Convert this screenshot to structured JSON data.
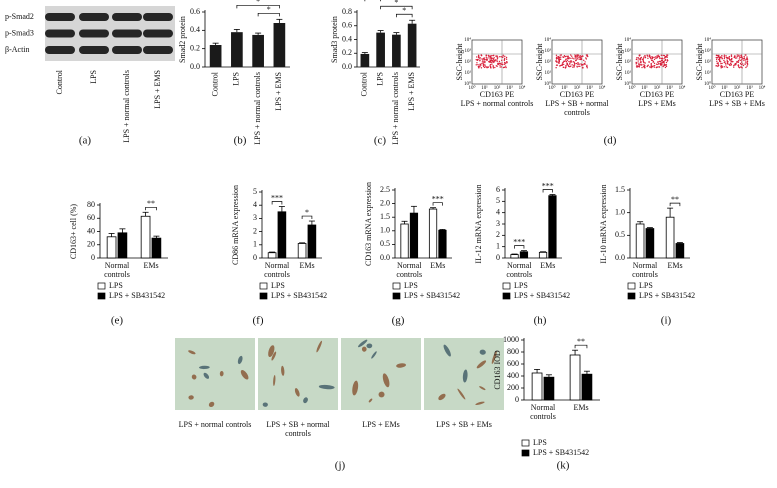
{
  "blot": {
    "rows": [
      "p-Smad2",
      "p-Smad3",
      "β-Actin"
    ],
    "lanes": [
      "Control",
      "LPS",
      "LPS + normal controls",
      "LPS + EMS"
    ],
    "panel": "(a)"
  },
  "flow": {
    "y_label": "SSC-height",
    "x_label": "CD163 PE",
    "axis_ticks": [
      "10⁰",
      "10¹",
      "10²",
      "10³",
      "10⁴"
    ],
    "captions": [
      "LPS + normal controls",
      "LPS + SB + normal controls",
      "LPS + EMs",
      "LPS + SB + EMs"
    ],
    "panel": "(d)"
  },
  "micrographs": {
    "captions": [
      "LPS + normal controls",
      "LPS + SB + normal controls",
      "LPS + EMs",
      "LPS + SB + EMs"
    ],
    "panel": "(j)"
  },
  "chart_data": [
    {
      "type": "bar",
      "panel": "(b)",
      "y_label": "Smad2 protein",
      "categories": [
        "Control",
        "LPS",
        "LPS + normal controls",
        "LPS + EMS"
      ],
      "values": [
        0.24,
        0.38,
        0.35,
        0.48
      ],
      "errors": [
        0.02,
        0.03,
        0.02,
        0.04
      ],
      "color": "#1a1a1a",
      "ylim": [
        0,
        0.6
      ],
      "yticks": [
        {
          "value": 0,
          "label": "0.0"
        },
        0.2,
        0.4,
        0.6
      ],
      "annotations": [
        {
          "text": "*",
          "from": 1,
          "to": 3
        },
        {
          "text": "*",
          "from": 2,
          "to": 3
        }
      ]
    },
    {
      "type": "bar",
      "panel": "(c)",
      "y_label": "Smad3 protein",
      "categories": [
        "Control",
        "LPS",
        "LPS + normal controls",
        "LPS + EMS"
      ],
      "values": [
        0.19,
        0.5,
        0.47,
        0.63
      ],
      "errors": [
        0.02,
        0.03,
        0.03,
        0.05
      ],
      "color": "#1a1a1a",
      "ylim": [
        0,
        0.8
      ],
      "yticks": [
        {
          "value": 0,
          "label": "0.0"
        },
        0.2,
        0.4,
        0.6,
        0.8
      ],
      "annotations": [
        {
          "text": "**",
          "from": 0,
          "to": 1
        },
        {
          "text": "*",
          "from": 1,
          "to": 3
        },
        {
          "text": "*",
          "from": 2,
          "to": 3
        }
      ]
    },
    {
      "type": "grouped_bar",
      "panel": "(e)",
      "y_label": "CD163+ cell (%)",
      "categories": [
        "Normal controls",
        "EMs"
      ],
      "series": [
        {
          "name": "LPS",
          "color": "#ffffff",
          "values": [
            32,
            63
          ],
          "errors": [
            5,
            6
          ]
        },
        {
          "name": "LPS + SB431542",
          "color": "#000000",
          "values": [
            38,
            30
          ],
          "errors": [
            6,
            3
          ]
        }
      ],
      "ylim": [
        0,
        80
      ],
      "yticks": [
        0,
        20,
        40,
        60,
        80
      ],
      "annotations": [
        {
          "text": "**",
          "category": 1
        }
      ]
    },
    {
      "type": "grouped_bar",
      "panel": "(f)",
      "y_label": "CD86 mRNA expression",
      "categories": [
        "Normal controls",
        "EMs"
      ],
      "series": [
        {
          "name": "LPS",
          "color": "#ffffff",
          "values": [
            0.4,
            1.1
          ],
          "errors": [
            0.05,
            0.05
          ]
        },
        {
          "name": "LPS + SB431542",
          "color": "#000000",
          "values": [
            3.5,
            2.5
          ],
          "errors": [
            0.4,
            0.3
          ]
        }
      ],
      "ylim": [
        0,
        5
      ],
      "yticks": [
        0,
        1,
        2,
        3,
        4,
        5
      ],
      "annotations": [
        {
          "text": "***",
          "category": 0
        },
        {
          "text": "*",
          "category": 1
        }
      ]
    },
    {
      "type": "grouped_bar",
      "panel": "(g)",
      "y_label": "CD163 mRNA expression",
      "categories": [
        "Normal controls",
        "EMs"
      ],
      "series": [
        {
          "name": "LPS",
          "color": "#ffffff",
          "values": [
            1.25,
            1.8
          ],
          "errors": [
            0.1,
            0.05
          ]
        },
        {
          "name": "LPS + SB431542",
          "color": "#000000",
          "values": [
            1.65,
            1.02
          ],
          "errors": [
            0.25,
            0.03
          ]
        }
      ],
      "ylim": [
        0,
        2.5
      ],
      "yticks": [
        {
          "value": 0,
          "label": "0.0"
        },
        0.5,
        {
          "value": 1,
          "label": "1.0"
        },
        1.5,
        {
          "value": 2,
          "label": "2.0"
        },
        2.5
      ],
      "annotations": [
        {
          "text": "***",
          "category": 1
        }
      ]
    },
    {
      "type": "grouped_bar",
      "panel": "(h)",
      "y_label": "IL-12 mRNA expression",
      "categories": [
        "Normal controls",
        "EMs"
      ],
      "series": [
        {
          "name": "LPS",
          "color": "#ffffff",
          "values": [
            0.3,
            0.5
          ],
          "errors": [
            0.05,
            0.05
          ]
        },
        {
          "name": "LPS + SB431542",
          "color": "#000000",
          "values": [
            0.55,
            5.5
          ],
          "errors": [
            0.1,
            0.1
          ]
        }
      ],
      "ylim": [
        0,
        6
      ],
      "yticks": [
        0,
        1,
        2,
        3,
        4,
        5,
        6
      ],
      "annotations": [
        {
          "text": "***",
          "category": 0
        },
        {
          "text": "***",
          "category": 1
        }
      ]
    },
    {
      "type": "grouped_bar",
      "panel": "(i)",
      "y_label": "IL-10 mRNA expression",
      "categories": [
        "Normal controls",
        "EMs"
      ],
      "series": [
        {
          "name": "LPS",
          "color": "#ffffff",
          "values": [
            0.75,
            0.9
          ],
          "errors": [
            0.05,
            0.2
          ]
        },
        {
          "name": "LPS + SB431542",
          "color": "#000000",
          "values": [
            0.65,
            0.32
          ],
          "errors": [
            0.02,
            0.02
          ]
        }
      ],
      "ylim": [
        0,
        1.5
      ],
      "yticks": [
        {
          "value": 0,
          "label": "0.0"
        },
        0.5,
        {
          "value": 1,
          "label": "1.0"
        },
        1.5
      ],
      "annotations": [
        {
          "text": "**",
          "category": 1
        }
      ]
    },
    {
      "type": "grouped_bar",
      "panel": "(k)",
      "y_label": "CD163 IOD",
      "categories": [
        "Normal controls",
        "EMs"
      ],
      "series": [
        {
          "name": "LPS",
          "color": "#ffffff",
          "values": [
            450,
            750
          ],
          "errors": [
            60,
            80
          ]
        },
        {
          "name": "LPS + SB431542",
          "color": "#000000",
          "values": [
            380,
            430
          ],
          "errors": [
            40,
            50
          ]
        }
      ],
      "ylim": [
        0,
        1000
      ],
      "yticks": [
        0,
        200,
        400,
        600,
        800,
        1000
      ],
      "annotations": [
        {
          "text": "**",
          "category": 1
        }
      ]
    }
  ]
}
